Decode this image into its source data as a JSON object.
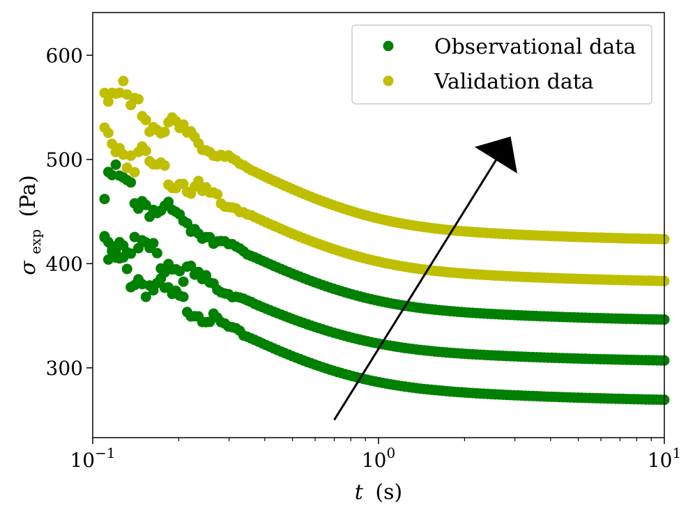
{
  "chart_data": {
    "type": "scatter",
    "title": "",
    "xlabel_var": "t",
    "xlabel_unit": "(s)",
    "ylabel_var": "σ",
    "ylabel_sub": "exp",
    "ylabel_unit": "(Pa)",
    "xscale": "log",
    "xlim": [
      0.1,
      10
    ],
    "ylim": [
      233,
      641
    ],
    "xticks": [
      {
        "value": 0.1,
        "base": "10",
        "exp": "−1"
      },
      {
        "value": 1,
        "base": "10",
        "exp": "0"
      },
      {
        "value": 10,
        "base": "10",
        "exp": "1"
      }
    ],
    "yticks": [
      {
        "value": 300,
        "label": "300"
      },
      {
        "value": 400,
        "label": "400"
      },
      {
        "value": 500,
        "label": "500"
      },
      {
        "value": 600,
        "label": "600"
      }
    ],
    "legend": {
      "position": "top-right",
      "entries": [
        {
          "label": "Observational data",
          "color": "#008000"
        },
        {
          "label": "Validation data",
          "color": "#bfbf00"
        }
      ]
    },
    "series": [
      {
        "name": "Observational data",
        "color": "#008000",
        "x_start": 0.11,
        "x_end": 10,
        "n": 150,
        "y_end": 266,
        "amplitude": 197,
        "tau": 0.32,
        "offset": 0
      },
      {
        "name": "Observational data",
        "color": "#008000",
        "x_start": 0.11,
        "x_end": 10,
        "n": 150,
        "y_end": 304,
        "amplitude": 180,
        "tau": 0.34,
        "offset": 1
      },
      {
        "name": "Observational data",
        "color": "#008000",
        "x_start": 0.11,
        "x_end": 10,
        "n": 150,
        "y_end": 343,
        "amplitude": 195,
        "tau": 0.35,
        "offset": 2
      },
      {
        "name": "Validation data",
        "color": "#bfbf00",
        "x_start": 0.11,
        "x_end": 10,
        "n": 150,
        "y_end": 380,
        "amplitude": 197,
        "tau": 0.36,
        "offset": 3
      },
      {
        "name": "Validation data",
        "color": "#bfbf00",
        "x_start": 0.11,
        "x_end": 10,
        "n": 150,
        "y_end": 420,
        "amplitude": 205,
        "tau": 0.37,
        "offset": 4
      }
    ],
    "annotation": {
      "type": "arrow",
      "from": [
        0.7,
        250
      ],
      "to": [
        2.9,
        522
      ],
      "color": "#000000"
    }
  }
}
